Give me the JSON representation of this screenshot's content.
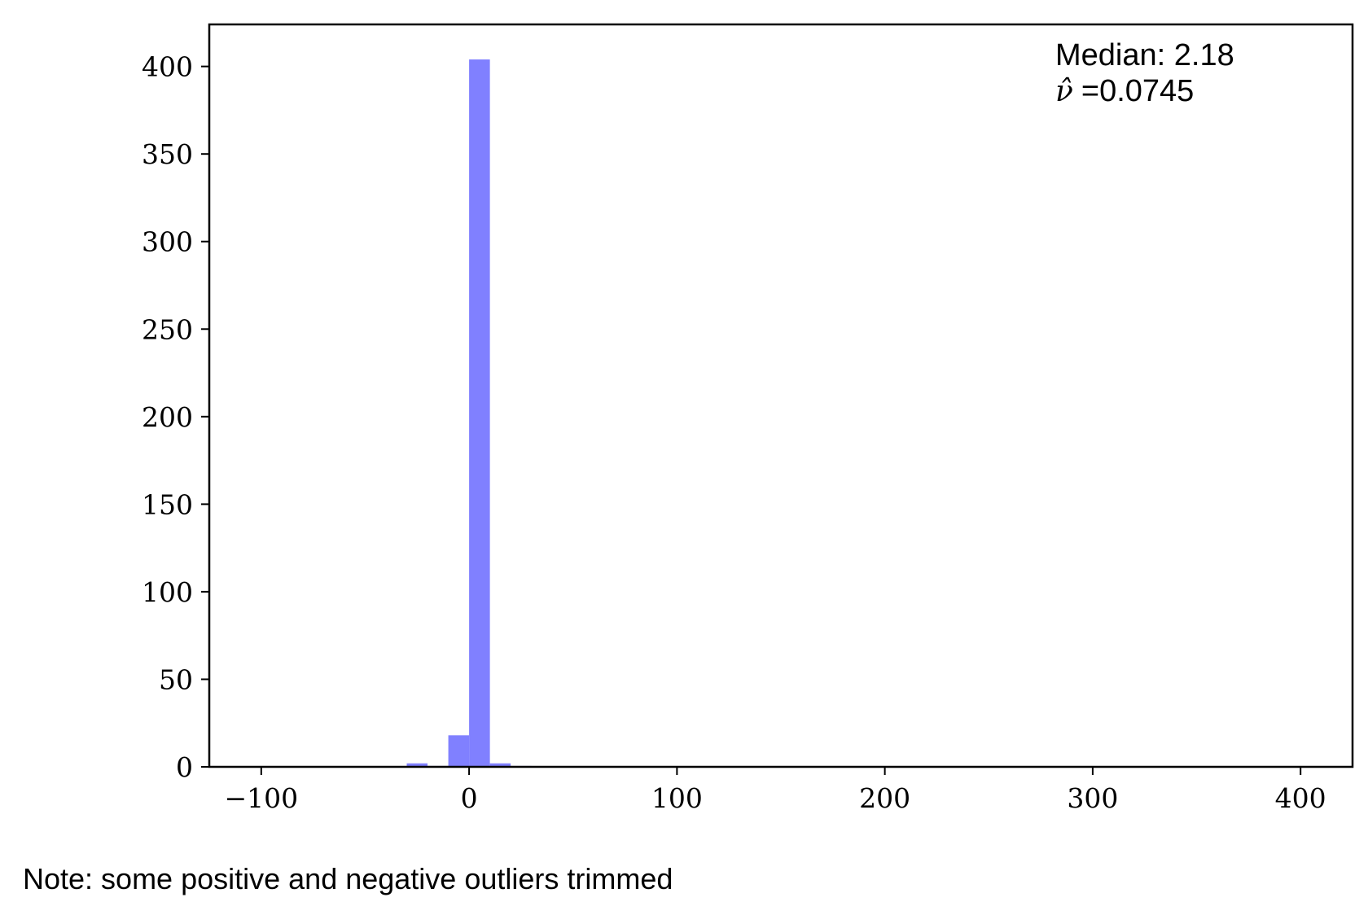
{
  "chart_data": {
    "type": "bar",
    "chart_subtype": "histogram",
    "bar_color": "#8080ff",
    "bins": [
      {
        "x0": -30,
        "x1": -20,
        "count": 2
      },
      {
        "x0": -20,
        "x1": -10,
        "count": 0.5
      },
      {
        "x0": -10,
        "x1": 0,
        "count": 18
      },
      {
        "x0": 0,
        "x1": 10,
        "count": 404
      },
      {
        "x0": 10,
        "x1": 20,
        "count": 2
      },
      {
        "x0": 20,
        "x1": 30,
        "count": 0.5
      }
    ],
    "xlim": [
      -125,
      425
    ],
    "ylim": [
      0,
      424
    ],
    "x_ticks": [
      -100,
      0,
      100,
      200,
      300,
      400
    ],
    "x_tick_labels": [
      "−100",
      "0",
      "100",
      "200",
      "300",
      "400"
    ],
    "y_ticks": [
      0,
      50,
      100,
      150,
      200,
      250,
      300,
      350,
      400
    ],
    "y_tick_labels": [
      "0",
      "50",
      "100",
      "150",
      "200",
      "250",
      "300",
      "350",
      "400"
    ],
    "grid": false,
    "annotations": {
      "median_label": "Median: 2.18",
      "nu_symbol": "ν̂",
      "nu_value": "=0.0745"
    },
    "note": "Note: some positive and negative outliers trimmed"
  }
}
